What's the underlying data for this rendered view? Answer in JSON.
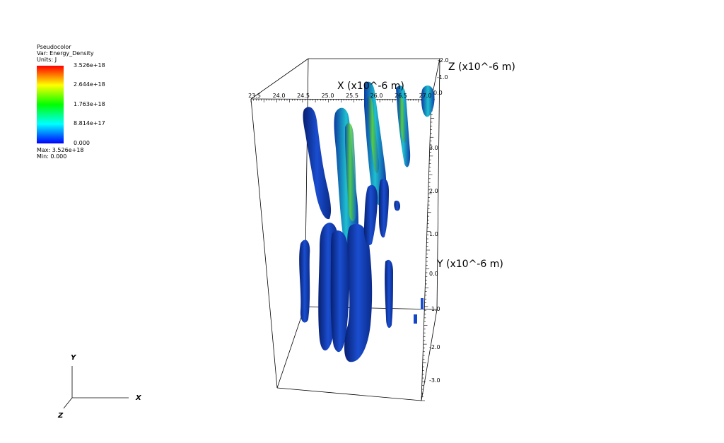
{
  "legend": {
    "plot_type": "Pseudocolor",
    "var_line": "Var: Energy_Density",
    "units_line": "Units: J",
    "ticks": [
      "3.526e+18",
      "2.644e+18",
      "1.763e+18",
      "8.814e+17",
      "0.000"
    ],
    "max_line": "Max:  3.526e+18",
    "min_line": "Min:  0.000",
    "colors": [
      "#ff0000",
      "#ffff00",
      "#00ff00",
      "#00ffff",
      "#0000ff"
    ]
  },
  "axes": {
    "x_title": "X (x10^-6 m)",
    "y_title": "Y (x10^-6 m)",
    "z_title": "Z (x10^-6 m)",
    "x_ticks": [
      "23.5",
      "24.0",
      "24.5",
      "25.0",
      "25.5",
      "26.0",
      "26.5",
      "27.0"
    ],
    "y_ticks": [
      "3.0",
      "2.0",
      "1.0",
      "0.0",
      "-1.0",
      "-2.0",
      "-3.0"
    ],
    "z_ticks": [
      "-2.0",
      "-1.0",
      "0.0"
    ]
  },
  "triad": {
    "x": "X",
    "y": "Y",
    "z": "Z"
  },
  "colors": {
    "surface_dark": "#0a2a8a",
    "surface_mid": "#1446c8",
    "surface_cyan": "#18b8c8",
    "surface_green": "#3cc83c"
  }
}
